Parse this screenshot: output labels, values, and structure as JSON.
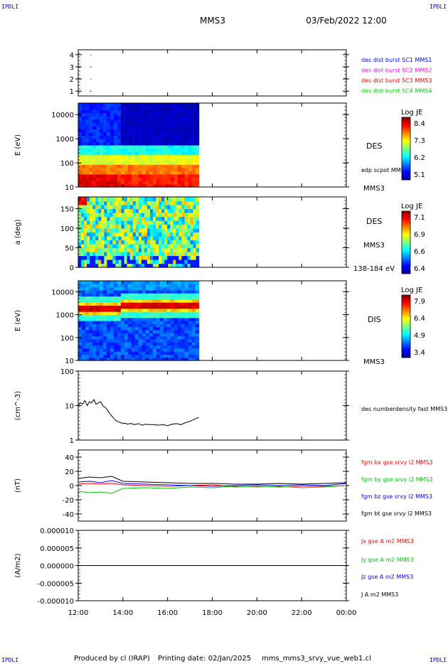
{
  "header": {
    "spacecraft": "MMS3",
    "datetime": "03/Feb/2022 12:00",
    "corner_label": "IPDLI"
  },
  "footer": {
    "produced_by": "Produced by cl (IRAP)",
    "printing_date": "Printing date: 02/Jan/2025",
    "script_name": "mms_mms3_srvy_vue_web1.cl"
  },
  "x_axis": {
    "ticks": [
      "12:00",
      "14:00",
      "16:00",
      "18:00",
      "20:00",
      "22:00",
      "00:00"
    ],
    "range_hours": [
      12,
      24
    ],
    "data_end_hour": 17.4
  },
  "colors": {
    "blue": "#0000ff",
    "magenta": "#ff00ff",
    "red": "#ff0000",
    "green": "#00cc00",
    "black": "#000000"
  },
  "chart_data": [
    {
      "type": "scatter",
      "ylabel": "",
      "yticks": [
        "1",
        "2",
        "3",
        "4"
      ],
      "ylim": [
        0.6,
        4.4
      ],
      "legend": [
        {
          "label": "des dist burst SC1 MMS1",
          "color": "#0000ff"
        },
        {
          "label": "des dist burst SC2 MMS2",
          "color": "#ff00ff"
        },
        {
          "label": "des dist burst SC3 MMS3",
          "color": "#ff0000"
        },
        {
          "label": "des dist burst SC4 MMS4",
          "color": "#00cc00"
        }
      ],
      "points": [
        {
          "x": 12.55,
          "y": 4,
          "color": "#00cc00"
        },
        {
          "x": 12.55,
          "y": 3,
          "color": "#ff0000"
        },
        {
          "x": 12.55,
          "y": 2,
          "color": "#ff00ff"
        },
        {
          "x": 12.55,
          "y": 1,
          "color": "#0000ff"
        }
      ]
    },
    {
      "type": "heatmap",
      "ylabel": "E (eV)",
      "yscale": "log",
      "ylim": [
        10,
        30000
      ],
      "yticks": [
        "10",
        "100",
        "1000",
        "10000"
      ],
      "instrument": "DES",
      "spacecraft": "MMS3",
      "overlay_label": "edp scpot MMS3",
      "colorbar": {
        "title": "Log JE",
        "ticks": [
          "8.4",
          "7.3",
          "6.2",
          "5.1"
        ]
      }
    },
    {
      "type": "heatmap",
      "ylabel": "a (deg)",
      "ylim": [
        0,
        180
      ],
      "yticks": [
        "0",
        "50",
        "100",
        "150"
      ],
      "instrument": "DES",
      "spacecraft": "MMS3",
      "energy_range": "138-184 eV",
      "colorbar": {
        "title": "Log JE",
        "ticks": [
          "7.1",
          "6.9",
          "6.6",
          "6.4"
        ]
      }
    },
    {
      "type": "heatmap",
      "ylabel": "E (eV)",
      "yscale": "log",
      "ylim": [
        10,
        30000
      ],
      "yticks": [
        "10",
        "100",
        "1000",
        "10000"
      ],
      "instrument": "DIS",
      "spacecraft": "MMS3",
      "colorbar": {
        "title": "Log JE",
        "ticks": [
          "7.9",
          "6.4",
          "4.9",
          "3.4"
        ]
      }
    },
    {
      "type": "line",
      "ylabel": "(cm^-3)",
      "yscale": "log",
      "ylim": [
        1,
        100
      ],
      "yticks": [
        "1",
        "10",
        "100"
      ],
      "series": [
        {
          "name": "des numberdensity fast MMS3",
          "color": "#000000",
          "x": [
            12.0,
            12.1,
            12.2,
            12.3,
            12.4,
            12.5,
            12.6,
            12.7,
            12.8,
            12.9,
            13.0,
            13.1,
            13.2,
            13.3,
            13.4,
            13.5,
            13.6,
            13.7,
            13.8,
            13.9,
            14.0,
            14.1,
            14.2,
            14.3,
            14.4,
            14.5,
            14.6,
            14.7,
            14.8,
            14.9,
            15.0,
            15.2,
            15.4,
            15.6,
            15.8,
            16.0,
            16.2,
            16.4,
            16.6,
            16.8,
            17.0,
            17.2,
            17.4
          ],
          "y": [
            10,
            12,
            11,
            14,
            10,
            13,
            12,
            15,
            11,
            12,
            13,
            10,
            9,
            7.5,
            6,
            5,
            4.2,
            3.6,
            3.4,
            3.2,
            3.0,
            3.1,
            2.9,
            3.0,
            3.0,
            2.8,
            2.9,
            3.0,
            2.8,
            2.7,
            2.9,
            2.8,
            2.8,
            2.7,
            2.8,
            2.6,
            2.9,
            3.0,
            2.8,
            3.2,
            3.5,
            4.0,
            4.6
          ]
        }
      ]
    },
    {
      "type": "line",
      "ylabel": "(nT)",
      "ylim": [
        -50,
        50
      ],
      "yticks": [
        "-40",
        "-20",
        "0",
        "20",
        "40"
      ],
      "series": [
        {
          "name": "fgm bx gse srvy l2 MMS3",
          "color": "#ff0000",
          "x": [
            12.0,
            12.5,
            13.0,
            13.5,
            14.0,
            15.0,
            16.0,
            17.0,
            18.0,
            19.0,
            20.0,
            21.0,
            22.0,
            23.0,
            24.0
          ],
          "y": [
            2,
            3,
            2,
            3,
            1,
            0,
            -1,
            0,
            1,
            -2,
            -1,
            -2,
            -1,
            -1,
            0
          ]
        },
        {
          "name": "fgm by gse srvy l2 MMS3",
          "color": "#00cc00",
          "x": [
            12.0,
            12.5,
            13.0,
            13.5,
            14.0,
            15.0,
            16.0,
            17.0,
            18.0,
            19.0,
            20.0,
            21.0,
            22.0,
            23.0,
            24.0
          ],
          "y": [
            -8,
            -10,
            -9,
            -11,
            -4,
            -3,
            -4,
            -2,
            -3,
            -1,
            -2,
            -1,
            -3,
            -2,
            0
          ]
        },
        {
          "name": "fgm bz gse srvy l2 MMS3",
          "color": "#0000ff",
          "x": [
            12.0,
            12.5,
            13.0,
            13.5,
            14.0,
            15.0,
            16.0,
            17.0,
            18.0,
            19.0,
            20.0,
            21.0,
            22.0,
            23.0,
            24.0
          ],
          "y": [
            5,
            6,
            4,
            7,
            3,
            2,
            1,
            0,
            -1,
            0,
            1,
            0,
            1,
            0,
            3
          ]
        },
        {
          "name": "fgm bt gse srvy l2 MMS3",
          "color": "#000000",
          "x": [
            12.0,
            12.5,
            13.0,
            13.5,
            14.0,
            15.0,
            16.0,
            17.0,
            18.0,
            19.0,
            20.0,
            21.0,
            22.0,
            23.0,
            24.0
          ],
          "y": [
            10,
            12,
            11,
            13,
            6,
            5,
            4,
            3,
            3,
            2,
            2,
            3,
            2,
            3,
            4
          ]
        }
      ]
    },
    {
      "type": "line",
      "ylabel": "(A/m2)",
      "ylim": [
        -1e-05,
        1e-05
      ],
      "yticks": [
        "-0.000010",
        "-0.000005",
        "0.000000",
        "0.000005",
        "0.000010"
      ],
      "series": [
        {
          "name": "Jx gse A m2 MMS3",
          "color": "#ff0000",
          "x": [],
          "y": []
        },
        {
          "name": "Jy gse A m2 MMS3",
          "color": "#00cc00",
          "x": [],
          "y": []
        },
        {
          "name": "Jz gse A m2 MMS3",
          "color": "#0000ff",
          "x": [],
          "y": []
        },
        {
          "name": "J A m2 MMS3",
          "color": "#000000",
          "x": [
            12.0,
            24.0
          ],
          "y": [
            0,
            0
          ]
        }
      ]
    }
  ]
}
